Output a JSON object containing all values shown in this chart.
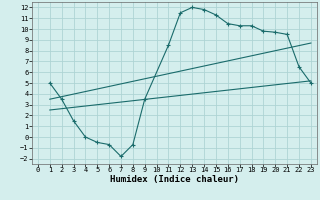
{
  "title": "",
  "xlabel": "Humidex (Indice chaleur)",
  "ylabel": "",
  "bg_color": "#d4eeed",
  "line_color": "#1a6b6b",
  "grid_color": "#aed4d4",
  "xlim": [
    -0.5,
    23.5
  ],
  "ylim": [
    -2.5,
    12.5
  ],
  "xticks": [
    0,
    1,
    2,
    3,
    4,
    5,
    6,
    7,
    8,
    9,
    10,
    11,
    12,
    13,
    14,
    15,
    16,
    17,
    18,
    19,
    20,
    21,
    22,
    23
  ],
  "yticks": [
    -2,
    -1,
    0,
    1,
    2,
    3,
    4,
    5,
    6,
    7,
    8,
    9,
    10,
    11,
    12
  ],
  "curve1_x": [
    1,
    2,
    3,
    4,
    5,
    6,
    7,
    8,
    9,
    11,
    12,
    13,
    14,
    15,
    16,
    17,
    18,
    19,
    20,
    21,
    22,
    23
  ],
  "curve1_y": [
    5.0,
    3.5,
    1.5,
    0.0,
    -0.5,
    -0.7,
    -1.8,
    -0.7,
    3.5,
    8.5,
    11.5,
    12.0,
    11.8,
    11.3,
    10.5,
    10.3,
    10.3,
    9.8,
    9.7,
    9.5,
    6.5,
    5.0
  ],
  "line1_x": [
    1,
    23
  ],
  "line1_y": [
    3.5,
    8.7
  ],
  "line2_x": [
    1,
    23
  ],
  "line2_y": [
    2.5,
    5.2
  ]
}
